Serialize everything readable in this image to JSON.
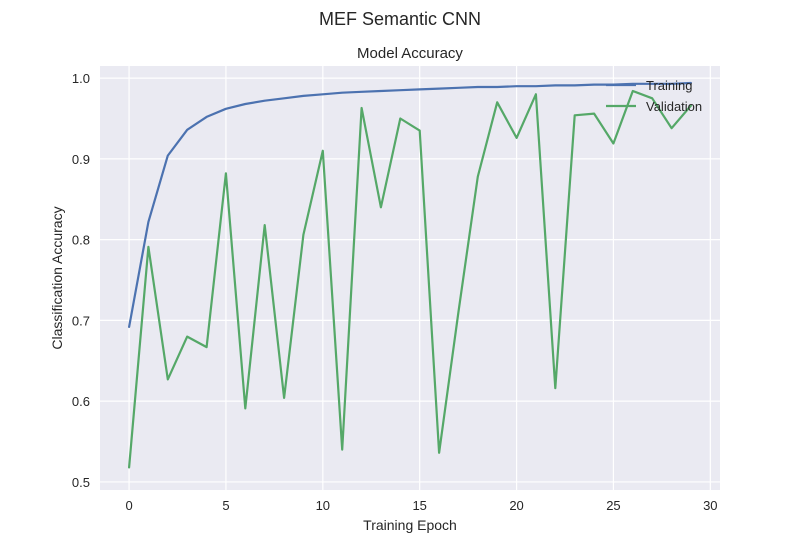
{
  "figure": {
    "suptitle": "MEF Semantic CNN"
  },
  "chart_data": {
    "type": "line",
    "title": "Model Accuracy",
    "xlabel": "Training Epoch",
    "ylabel": "Classification Accuracy",
    "xlim": [
      -1.5,
      30.5
    ],
    "ylim": [
      0.49,
      1.015
    ],
    "xticks": [
      0,
      5,
      10,
      15,
      20,
      25,
      30
    ],
    "yticks": [
      0.5,
      0.6,
      0.7,
      0.8,
      0.9,
      1.0
    ],
    "xtick_labels": [
      "0",
      "5",
      "10",
      "15",
      "20",
      "25",
      "30"
    ],
    "ytick_labels": [
      "0.5",
      "0.6",
      "0.7",
      "0.8",
      "0.9",
      "1.0"
    ],
    "grid": true,
    "legend": "upper right",
    "x": [
      0,
      1,
      2,
      3,
      4,
      5,
      6,
      7,
      8,
      9,
      10,
      11,
      12,
      13,
      14,
      15,
      16,
      17,
      18,
      19,
      20,
      21,
      22,
      23,
      24,
      25,
      26,
      27,
      28,
      29
    ],
    "series": [
      {
        "name": "Training",
        "color": "#4c72b0",
        "values": [
          0.692,
          0.822,
          0.904,
          0.936,
          0.952,
          0.962,
          0.968,
          0.972,
          0.975,
          0.978,
          0.98,
          0.982,
          0.983,
          0.984,
          0.985,
          0.986,
          0.987,
          0.988,
          0.989,
          0.989,
          0.99,
          0.99,
          0.991,
          0.991,
          0.992,
          0.992,
          0.993,
          0.993,
          0.993,
          0.994
        ]
      },
      {
        "name": "Validation",
        "color": "#55a868",
        "values": [
          0.518,
          0.791,
          0.627,
          0.68,
          0.667,
          0.882,
          0.591,
          0.818,
          0.604,
          0.806,
          0.91,
          0.54,
          0.963,
          0.84,
          0.95,
          0.935,
          0.536,
          0.71,
          0.878,
          0.97,
          0.926,
          0.98,
          0.616,
          0.954,
          0.956,
          0.919,
          0.984,
          0.975,
          0.938,
          0.966
        ]
      }
    ]
  }
}
